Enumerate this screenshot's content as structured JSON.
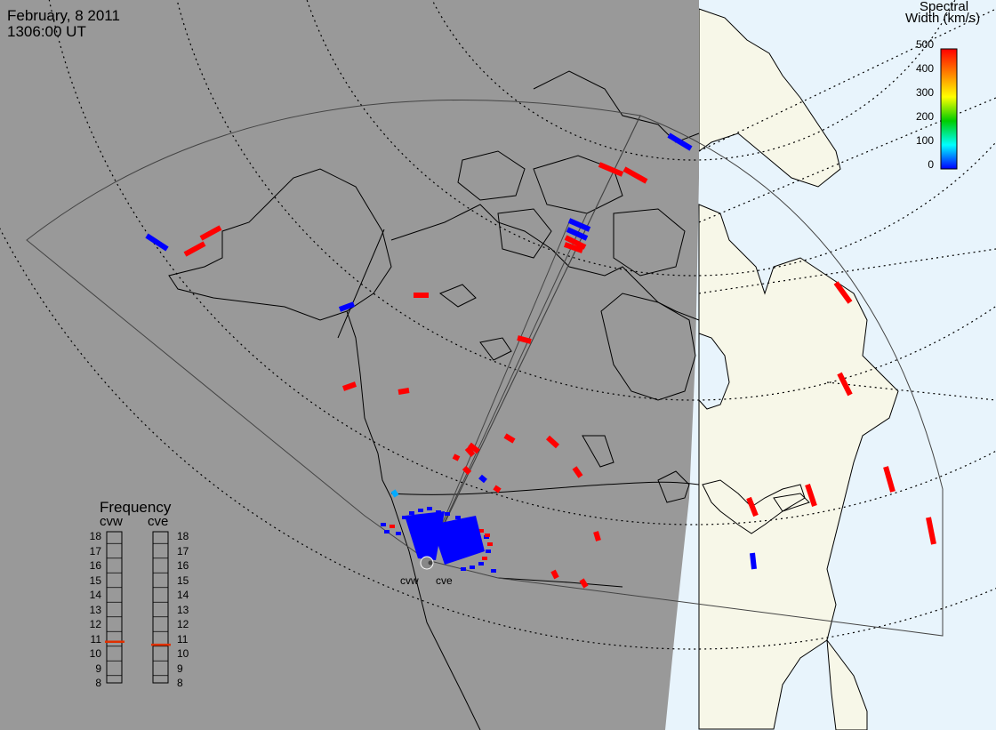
{
  "header": {
    "date": "February, 8 2011",
    "time": "1306:00 UT"
  },
  "legend": {
    "title_line1": "Spectral",
    "title_line2": "Width (km/s)",
    "ticks": [
      "500",
      "400",
      "300",
      "200",
      "100",
      "0"
    ],
    "colors": [
      "#ff0000",
      "#ff7f00",
      "#ffff00",
      "#00cc00",
      "#00ffff",
      "#0000ff"
    ]
  },
  "frequency_panel": {
    "title": "Frequency",
    "radars": [
      {
        "name": "cvw",
        "value": 10.8
      },
      {
        "name": "cve",
        "value": 10.6
      }
    ],
    "scale": [
      "18",
      "17",
      "16",
      "15",
      "14",
      "13",
      "12",
      "11",
      "10",
      "9",
      "8"
    ]
  },
  "sites": [
    {
      "name": "cvw"
    },
    {
      "name": "cve"
    }
  ],
  "colors": {
    "night": "#999999",
    "day_land": "#f7f7e8",
    "day_ocean": "#e8f4fc",
    "low_width": "#0000ff",
    "high_width": "#ff0000",
    "freq_marker": "#e03000"
  },
  "map_features": [
    "night-shade",
    "coastlines",
    "fov-outline",
    "latitude-circles",
    "backscatter-cells"
  ]
}
